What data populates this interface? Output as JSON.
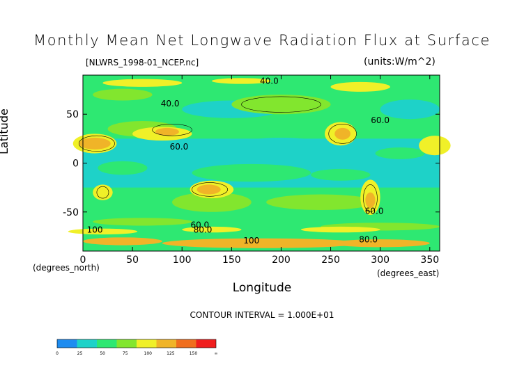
{
  "chart_data": {
    "type": "heatmap",
    "title": "Monthly Mean Net Longwave Radiation Flux at Surface",
    "subtitle": "[NLWRS_1998-01_NCEP.nc]",
    "units_label": "(units:W/m^2)",
    "xlabel": "Longitude",
    "ylabel": "Latitude",
    "x_units": "(degrees_east)",
    "y_units": "(degrees_north)",
    "contour_interval_label": "CONTOUR INTERVAL = 1.000E+01",
    "xlim": [
      0,
      360
    ],
    "ylim": [
      -90,
      90
    ],
    "x_ticks": [
      0,
      50,
      100,
      150,
      200,
      250,
      300,
      350
    ],
    "y_ticks": [
      -50,
      0,
      50
    ],
    "contour_labels": [
      {
        "text": "40.0",
        "lon": 188,
        "lat": 81
      },
      {
        "text": "40.0",
        "lon": 88,
        "lat": 58
      },
      {
        "text": "60.0",
        "lon": 97,
        "lat": 14
      },
      {
        "text": "60.0",
        "lon": 300,
        "lat": 41
      },
      {
        "text": "60.0",
        "lon": 118,
        "lat": -66
      },
      {
        "text": "80.0",
        "lon": 121,
        "lat": -71
      },
      {
        "text": "100",
        "lon": 12,
        "lat": -71
      },
      {
        "text": "100",
        "lon": 170,
        "lat": -82
      },
      {
        "text": "80.0",
        "lon": 288,
        "lat": -81
      },
      {
        "text": "60.0",
        "lon": 294,
        "lat": -52
      }
    ],
    "colorbar": {
      "levels": [
        "0",
        "25",
        "50",
        "75",
        "100",
        "125",
        "150",
        "∞"
      ],
      "colors": [
        "#1e8cf0",
        "#1ed2c8",
        "#2ee872",
        "#82e62e",
        "#f0f028",
        "#f0b428",
        "#f06e1e",
        "#f01e1e"
      ]
    }
  }
}
